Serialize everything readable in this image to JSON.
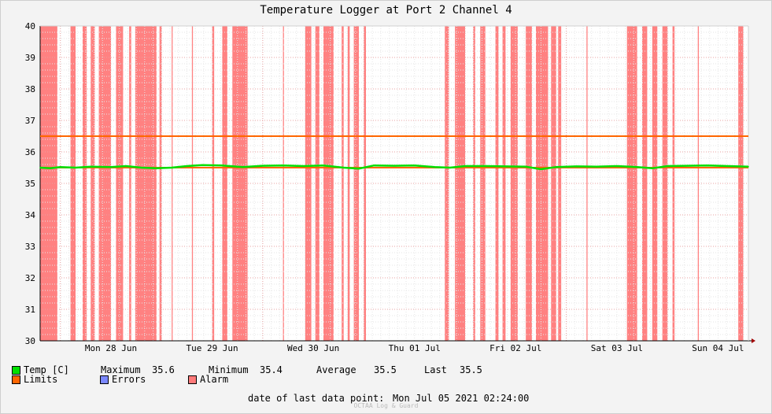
{
  "window": {
    "title": "Temperature Logger at Port 2 Channel 4"
  },
  "legend": {
    "temp": {
      "label": "Temp [C]",
      "color": "#00e000"
    },
    "limits": {
      "label": "Limits",
      "color": "#ff6600"
    },
    "errors": {
      "label": "Errors",
      "color": "#7b88ff"
    },
    "alarm": {
      "label": "Alarm",
      "color": "#ff7a7a"
    },
    "stats": {
      "maximum_label": "Maximum",
      "maximum": "35.6",
      "minimum_label": "Minimum",
      "minimum": "35.4",
      "average_label": "Average",
      "average": "35.5",
      "last_label": "Last",
      "last": "35.5"
    }
  },
  "footer": {
    "last_point_label": "date of last data point:",
    "last_point_value": "Mon Jul 05 2021 02:24:00",
    "watermark": "OCTAA Log & Guard"
  },
  "chart_data": {
    "type": "line",
    "title": "Temperature Logger at Port 2 Channel 4",
    "xlabel": "",
    "ylabel": "",
    "x_unit": "day (since Mon 28 Jun 2021 00:00)",
    "xlim": [
      -0.2,
      6.8
    ],
    "ylim": [
      30,
      40
    ],
    "y_ticks": [
      30,
      31,
      32,
      33,
      34,
      35,
      36,
      37,
      38,
      39,
      40
    ],
    "x_ticks": [
      {
        "day": 0,
        "label": "Mon 28 Jun"
      },
      {
        "day": 1,
        "label": "Tue 29 Jun"
      },
      {
        "day": 2,
        "label": "Wed 30 Jun"
      },
      {
        "day": 3,
        "label": "Thu 01 Jul"
      },
      {
        "day": 4,
        "label": "Fri 02 Jul"
      },
      {
        "day": 5,
        "label": "Sat 03 Jul"
      },
      {
        "day": 6,
        "label": "Sun 04 Jul"
      }
    ],
    "grid": true,
    "limits": [
      35.5,
      36.5
    ],
    "series": [
      {
        "name": "Temp [C]",
        "color": "#00e000",
        "x": [
          -0.2,
          -0.1,
          0.0,
          0.15,
          0.3,
          0.5,
          0.65,
          0.8,
          0.95,
          1.1,
          1.25,
          1.4,
          1.6,
          1.8,
          2.0,
          2.2,
          2.4,
          2.6,
          2.8,
          2.95,
          3.1,
          3.3,
          3.5,
          3.7,
          3.85,
          4.0,
          4.2,
          4.4,
          4.6,
          4.75,
          4.9,
          5.1,
          5.3,
          5.5,
          5.7,
          5.85,
          6.0,
          6.2,
          6.4,
          6.6,
          6.8
        ],
        "y": [
          35.5,
          35.48,
          35.52,
          35.5,
          35.53,
          35.52,
          35.55,
          35.5,
          35.48,
          35.5,
          35.55,
          35.58,
          35.57,
          35.52,
          35.56,
          35.57,
          35.55,
          35.57,
          35.5,
          35.47,
          35.57,
          35.56,
          35.57,
          35.52,
          35.5,
          35.55,
          35.55,
          35.54,
          35.53,
          35.45,
          35.52,
          35.54,
          35.53,
          35.55,
          35.52,
          35.48,
          35.55,
          35.56,
          35.57,
          35.55,
          35.53
        ]
      }
    ],
    "alarm_intervals": [
      [
        -0.2,
        -0.03
      ],
      [
        0.1,
        0.15
      ],
      [
        0.22,
        0.26
      ],
      [
        0.3,
        0.34
      ],
      [
        0.38,
        0.5
      ],
      [
        0.55,
        0.62
      ],
      [
        0.68,
        0.7
      ],
      [
        0.74,
        0.95
      ],
      [
        0.98,
        1.0
      ],
      [
        1.1,
        1.11
      ],
      [
        1.3,
        1.31
      ],
      [
        1.5,
        1.52
      ],
      [
        1.6,
        1.65
      ],
      [
        1.7,
        1.85
      ],
      [
        2.2,
        2.21
      ],
      [
        2.42,
        2.48
      ],
      [
        2.52,
        2.56
      ],
      [
        2.6,
        2.7
      ],
      [
        2.78,
        2.8
      ],
      [
        2.84,
        2.86
      ],
      [
        2.9,
        2.95
      ],
      [
        3.0,
        3.02
      ],
      [
        3.8,
        3.84
      ],
      [
        3.9,
        4.0
      ],
      [
        4.08,
        4.1
      ],
      [
        4.15,
        4.2
      ],
      [
        4.3,
        4.33
      ],
      [
        4.37,
        4.4
      ],
      [
        4.45,
        4.52
      ],
      [
        4.6,
        4.66
      ],
      [
        4.7,
        4.82
      ],
      [
        4.85,
        4.9
      ],
      [
        4.92,
        4.95
      ],
      [
        5.2,
        5.21
      ],
      [
        5.6,
        5.7
      ],
      [
        5.75,
        5.8
      ],
      [
        5.85,
        5.9
      ],
      [
        5.95,
        6.0
      ],
      [
        6.05,
        6.07
      ],
      [
        6.3,
        6.31
      ],
      [
        6.7,
        6.75
      ]
    ]
  }
}
